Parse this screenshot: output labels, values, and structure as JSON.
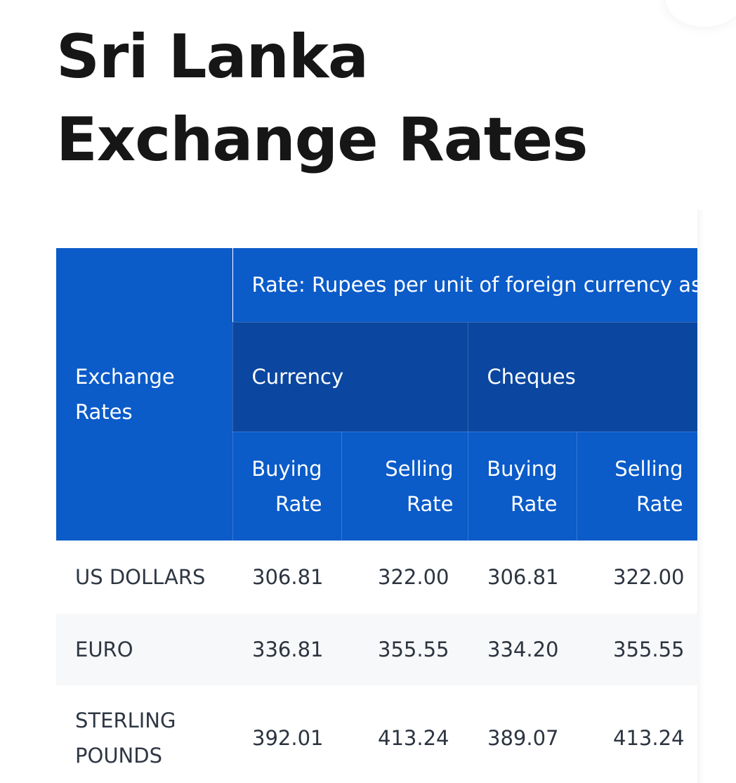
{
  "page": {
    "title": "Sri Lanka Exchange Rates"
  },
  "table": {
    "header_main": "Exchange Rates",
    "header_rate_note": "Rate: Rupees per unit of foreign currency as",
    "groups": [
      "Currency",
      "Cheques"
    ],
    "subheaders": [
      "Buying Rate",
      "Selling Rate",
      "Buying Rate",
      "Selling Rate"
    ],
    "rows": [
      {
        "name": "US DOLLARS",
        "values": [
          "306.81",
          "322.00",
          "306.81",
          "322.00"
        ]
      },
      {
        "name": "EURO",
        "values": [
          "336.81",
          "355.55",
          "334.20",
          "355.55"
        ]
      },
      {
        "name": "STERLING POUNDS",
        "values": [
          "392.01",
          "413.24",
          "389.07",
          "413.24"
        ]
      }
    ]
  },
  "colors": {
    "header_blue": "#0b5bc9",
    "header_dark_blue": "#0b47a0",
    "stripe_row": "#f7f8f9",
    "title_text": "#161616"
  }
}
